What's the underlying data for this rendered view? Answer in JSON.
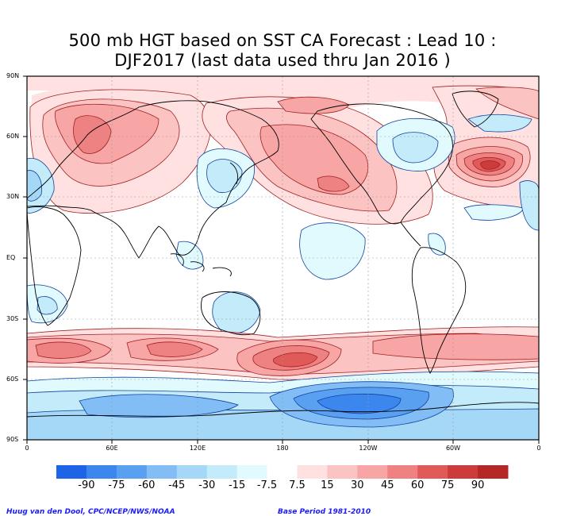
{
  "title": {
    "line1": "500 mb HGT based on SST CA Forecast : Lead 10 :",
    "line2": "DJF2017 (last data used thru Jan 2016 )"
  },
  "axes": {
    "lat_labels": [
      "90N",
      "60N",
      "30N",
      "EQ",
      "30S",
      "60S",
      "90S"
    ],
    "lon_labels": [
      "0",
      "60E",
      "120E",
      "180",
      "120W",
      "60W",
      "0"
    ]
  },
  "colorbar": {
    "levels": [
      "-90",
      "-75",
      "-60",
      "-45",
      "-30",
      "-15",
      "-7.5",
      "7.5",
      "15",
      "30",
      "45",
      "60",
      "75",
      "90"
    ],
    "colors": [
      "#1e64e6",
      "#3c87ed",
      "#5aa0f0",
      "#82bef5",
      "#a5d7f7",
      "#c3ebfa",
      "#e1fafd",
      "#ffffff",
      "#ffe1e1",
      "#fcc3c3",
      "#f7a5a5",
      "#ee8282",
      "#e05a5a",
      "#cc3c3c",
      "#b42828"
    ]
  },
  "footer": {
    "credit": "Huug van den Dool, CPC/NCEP/NWS/NOAA",
    "base_period": "Base Period 1981-2010"
  }
}
